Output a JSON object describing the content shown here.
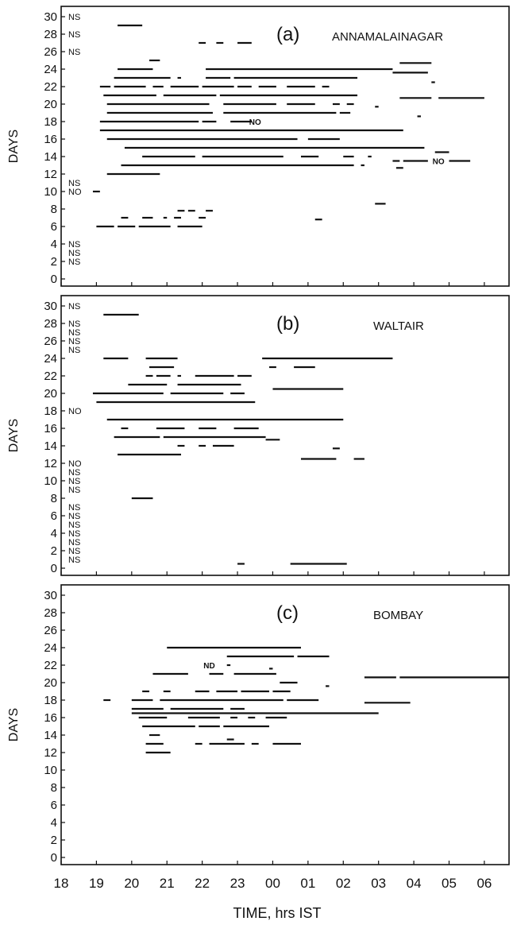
{
  "figure": {
    "xlabel": "TIME, hrs IST",
    "ylabel": "DAYS",
    "x_tick_labels": [
      "18",
      "19",
      "20",
      "21",
      "22",
      "23",
      "00",
      "01",
      "02",
      "03",
      "04",
      "05",
      "06"
    ]
  },
  "chart_data": [
    {
      "type": "gantt",
      "panel_label": "(a)",
      "station": "ANNAMALAINAGAR",
      "xlim": [
        18.0,
        30.7
      ],
      "ylim": [
        0,
        31
      ],
      "yticks": [
        0,
        2,
        4,
        6,
        8,
        10,
        12,
        14,
        16,
        18,
        20,
        22,
        24,
        26,
        28,
        30
      ],
      "ylabel": "DAYS",
      "markers": [
        {
          "day": 30,
          "text": "NS"
        },
        {
          "day": 28,
          "text": "NS"
        },
        {
          "day": 26,
          "text": "NS"
        },
        {
          "day": 11,
          "text": "NS"
        },
        {
          "day": 10,
          "text": "NO"
        },
        {
          "day": 4,
          "text": "NS"
        },
        {
          "day": 3,
          "text": "NS"
        },
        {
          "day": 2,
          "text": "NS"
        }
      ],
      "inline_labels": [
        {
          "day": 18,
          "time": 23.5,
          "text": "NO"
        },
        {
          "day": 13.5,
          "time": 28.7,
          "text": "NO"
        }
      ],
      "segments": [
        {
          "day": 29,
          "start": 19.6,
          "end": 20.3
        },
        {
          "day": 27,
          "start": 21.9,
          "end": 22.1
        },
        {
          "day": 27,
          "start": 22.4,
          "end": 22.6
        },
        {
          "day": 27,
          "start": 23.0,
          "end": 23.4
        },
        {
          "day": 25,
          "start": 20.5,
          "end": 20.8
        },
        {
          "day": 24.7,
          "start": 27.6,
          "end": 28.5
        },
        {
          "day": 24,
          "start": 19.6,
          "end": 20.6
        },
        {
          "day": 24,
          "start": 22.1,
          "end": 27.4
        },
        {
          "day": 23.6,
          "start": 27.4,
          "end": 28.4
        },
        {
          "day": 23,
          "start": 19.5,
          "end": 21.1
        },
        {
          "day": 23,
          "start": 21.3,
          "end": 21.4
        },
        {
          "day": 23,
          "start": 22.1,
          "end": 22.8
        },
        {
          "day": 23,
          "start": 22.9,
          "end": 26.4
        },
        {
          "day": 22.5,
          "start": 28.5,
          "end": 28.6
        },
        {
          "day": 22,
          "start": 19.1,
          "end": 19.4
        },
        {
          "day": 22,
          "start": 19.5,
          "end": 20.4
        },
        {
          "day": 22,
          "start": 20.6,
          "end": 20.9
        },
        {
          "day": 22,
          "start": 21.1,
          "end": 21.9
        },
        {
          "day": 22,
          "start": 22.0,
          "end": 22.9
        },
        {
          "day": 22,
          "start": 23.0,
          "end": 23.4
        },
        {
          "day": 22,
          "start": 23.6,
          "end": 24.1
        },
        {
          "day": 22,
          "start": 24.4,
          "end": 25.2
        },
        {
          "day": 22,
          "start": 25.4,
          "end": 25.6
        },
        {
          "day": 21,
          "start": 19.2,
          "end": 20.7
        },
        {
          "day": 21,
          "start": 20.9,
          "end": 22.4
        },
        {
          "day": 21,
          "start": 22.5,
          "end": 26.4
        },
        {
          "day": 20.7,
          "start": 27.6,
          "end": 28.5
        },
        {
          "day": 20.7,
          "start": 28.7,
          "end": 30.0
        },
        {
          "day": 20,
          "start": 19.3,
          "end": 22.2
        },
        {
          "day": 20,
          "start": 22.6,
          "end": 24.1
        },
        {
          "day": 20,
          "start": 24.4,
          "end": 25.2
        },
        {
          "day": 20,
          "start": 25.7,
          "end": 25.9
        },
        {
          "day": 20,
          "start": 26.1,
          "end": 26.3
        },
        {
          "day": 19.7,
          "start": 26.9,
          "end": 27.0
        },
        {
          "day": 19,
          "start": 19.3,
          "end": 22.3
        },
        {
          "day": 19,
          "start": 22.6,
          "end": 25.8
        },
        {
          "day": 19,
          "start": 25.9,
          "end": 26.2
        },
        {
          "day": 18.6,
          "start": 28.1,
          "end": 28.2
        },
        {
          "day": 18,
          "start": 19.1,
          "end": 21.9
        },
        {
          "day": 18,
          "start": 22.0,
          "end": 22.4
        },
        {
          "day": 18,
          "start": 22.8,
          "end": 23.4
        },
        {
          "day": 17,
          "start": 19.1,
          "end": 27.7
        },
        {
          "day": 16,
          "start": 19.3,
          "end": 24.7
        },
        {
          "day": 16,
          "start": 25.0,
          "end": 25.9
        },
        {
          "day": 15,
          "start": 19.8,
          "end": 28.3
        },
        {
          "day": 14.5,
          "start": 28.6,
          "end": 29.0
        },
        {
          "day": 14,
          "start": 20.3,
          "end": 21.8
        },
        {
          "day": 14,
          "start": 22.0,
          "end": 24.3
        },
        {
          "day": 14,
          "start": 24.8,
          "end": 25.3
        },
        {
          "day": 14,
          "start": 26.0,
          "end": 26.3
        },
        {
          "day": 14,
          "start": 26.7,
          "end": 26.8
        },
        {
          "day": 13.5,
          "start": 27.4,
          "end": 27.6
        },
        {
          "day": 13.5,
          "start": 27.7,
          "end": 28.4
        },
        {
          "day": 13.5,
          "start": 29.0,
          "end": 29.6
        },
        {
          "day": 13,
          "start": 19.7,
          "end": 26.3
        },
        {
          "day": 13,
          "start": 26.5,
          "end": 26.6
        },
        {
          "day": 12.7,
          "start": 27.5,
          "end": 27.7
        },
        {
          "day": 12,
          "start": 19.3,
          "end": 20.8
        },
        {
          "day": 10,
          "start": 18.9,
          "end": 19.1
        },
        {
          "day": 8.6,
          "start": 26.9,
          "end": 27.2
        },
        {
          "day": 7.8,
          "start": 21.3,
          "end": 21.5
        },
        {
          "day": 7.8,
          "start": 21.6,
          "end": 21.8
        },
        {
          "day": 7.8,
          "start": 22.1,
          "end": 22.3
        },
        {
          "day": 7,
          "start": 19.7,
          "end": 19.9
        },
        {
          "day": 7,
          "start": 20.3,
          "end": 20.6
        },
        {
          "day": 7,
          "start": 20.9,
          "end": 21.0
        },
        {
          "day": 7,
          "start": 21.2,
          "end": 21.4
        },
        {
          "day": 7,
          "start": 21.9,
          "end": 22.1
        },
        {
          "day": 6.8,
          "start": 25.2,
          "end": 25.4
        },
        {
          "day": 6,
          "start": 19.0,
          "end": 19.5
        },
        {
          "day": 6,
          "start": 19.6,
          "end": 20.1
        },
        {
          "day": 6,
          "start": 20.2,
          "end": 21.1
        },
        {
          "day": 6,
          "start": 21.3,
          "end": 22.0
        }
      ]
    },
    {
      "type": "gantt",
      "panel_label": "(b)",
      "station": "WALTAIR",
      "xlim": [
        18.0,
        30.7
      ],
      "ylim": [
        0,
        31
      ],
      "yticks": [
        0,
        2,
        4,
        6,
        8,
        10,
        12,
        14,
        16,
        18,
        20,
        22,
        24,
        26,
        28,
        30
      ],
      "ylabel": "DAYS",
      "markers": [
        {
          "day": 30,
          "text": "NS"
        },
        {
          "day": 28,
          "text": "NS"
        },
        {
          "day": 27,
          "text": "NS"
        },
        {
          "day": 26,
          "text": "NS"
        },
        {
          "day": 25,
          "text": "NS"
        },
        {
          "day": 18,
          "text": "NO"
        },
        {
          "day": 12,
          "text": "NO"
        },
        {
          "day": 11,
          "text": "NS"
        },
        {
          "day": 10,
          "text": "NS"
        },
        {
          "day": 9,
          "text": "NS"
        },
        {
          "day": 7,
          "text": "NS"
        },
        {
          "day": 6,
          "text": "NS"
        },
        {
          "day": 5,
          "text": "NS"
        },
        {
          "day": 4,
          "text": "NS"
        },
        {
          "day": 3,
          "text": "NS"
        },
        {
          "day": 2,
          "text": "NS"
        },
        {
          "day": 1,
          "text": "NS"
        }
      ],
      "inline_labels": [],
      "segments": [
        {
          "day": 29,
          "start": 19.2,
          "end": 20.2
        },
        {
          "day": 24,
          "start": 19.2,
          "end": 19.9
        },
        {
          "day": 24,
          "start": 20.4,
          "end": 21.3
        },
        {
          "day": 24,
          "start": 23.7,
          "end": 27.4
        },
        {
          "day": 23,
          "start": 20.5,
          "end": 21.2
        },
        {
          "day": 23,
          "start": 23.9,
          "end": 24.1
        },
        {
          "day": 23,
          "start": 24.6,
          "end": 25.2
        },
        {
          "day": 22,
          "start": 20.4,
          "end": 20.6
        },
        {
          "day": 22,
          "start": 20.7,
          "end": 21.1
        },
        {
          "day": 22,
          "start": 21.3,
          "end": 21.4
        },
        {
          "day": 22,
          "start": 21.8,
          "end": 22.9
        },
        {
          "day": 22,
          "start": 23.0,
          "end": 23.4
        },
        {
          "day": 21,
          "start": 19.9,
          "end": 21.0
        },
        {
          "day": 21,
          "start": 21.3,
          "end": 23.1
        },
        {
          "day": 20.5,
          "start": 24.0,
          "end": 26.0
        },
        {
          "day": 20,
          "start": 18.9,
          "end": 20.9
        },
        {
          "day": 20,
          "start": 21.1,
          "end": 22.6
        },
        {
          "day": 20,
          "start": 22.8,
          "end": 23.2
        },
        {
          "day": 19,
          "start": 19.0,
          "end": 23.5
        },
        {
          "day": 17,
          "start": 19.3,
          "end": 26.0
        },
        {
          "day": 16,
          "start": 19.7,
          "end": 19.9
        },
        {
          "day": 16,
          "start": 20.7,
          "end": 21.5
        },
        {
          "day": 16,
          "start": 21.9,
          "end": 22.4
        },
        {
          "day": 16,
          "start": 22.9,
          "end": 23.6
        },
        {
          "day": 15,
          "start": 19.5,
          "end": 20.8
        },
        {
          "day": 15,
          "start": 20.9,
          "end": 23.8
        },
        {
          "day": 14.7,
          "start": 23.8,
          "end": 24.2
        },
        {
          "day": 14,
          "start": 21.3,
          "end": 21.5
        },
        {
          "day": 14,
          "start": 21.9,
          "end": 22.1
        },
        {
          "day": 14,
          "start": 22.3,
          "end": 22.9
        },
        {
          "day": 13.7,
          "start": 25.7,
          "end": 25.9
        },
        {
          "day": 13,
          "start": 19.6,
          "end": 21.4
        },
        {
          "day": 12.5,
          "start": 24.8,
          "end": 25.8
        },
        {
          "day": 12.5,
          "start": 26.3,
          "end": 26.6
        },
        {
          "day": 8,
          "start": 20.0,
          "end": 20.6
        },
        {
          "day": 0.5,
          "start": 23.0,
          "end": 23.2
        },
        {
          "day": 0.5,
          "start": 24.5,
          "end": 26.1
        }
      ]
    },
    {
      "type": "gantt",
      "panel_label": "(c)",
      "station": "BOMBAY",
      "xlim": [
        18.0,
        30.7
      ],
      "ylim": [
        0,
        31
      ],
      "yticks": [
        0,
        2,
        4,
        6,
        8,
        10,
        12,
        14,
        16,
        18,
        20,
        22,
        24,
        26,
        28,
        30
      ],
      "ylabel": "DAYS",
      "markers": [],
      "inline_labels": [
        {
          "day": 22,
          "time": 22.2,
          "text": "ND"
        }
      ],
      "segments": [
        {
          "day": 24,
          "start": 21.0,
          "end": 24.8
        },
        {
          "day": 23,
          "start": 22.7,
          "end": 24.6
        },
        {
          "day": 23,
          "start": 24.7,
          "end": 25.6
        },
        {
          "day": 22,
          "start": 22.7,
          "end": 22.8
        },
        {
          "day": 21.6,
          "start": 23.9,
          "end": 24.0
        },
        {
          "day": 21,
          "start": 20.6,
          "end": 21.6
        },
        {
          "day": 21,
          "start": 22.2,
          "end": 22.6
        },
        {
          "day": 21,
          "start": 22.9,
          "end": 24.1
        },
        {
          "day": 20.6,
          "start": 26.6,
          "end": 27.5
        },
        {
          "day": 20.6,
          "start": 27.6,
          "end": 30.7
        },
        {
          "day": 20,
          "start": 24.2,
          "end": 24.7
        },
        {
          "day": 19.6,
          "start": 25.5,
          "end": 25.6
        },
        {
          "day": 19,
          "start": 20.3,
          "end": 20.5
        },
        {
          "day": 19,
          "start": 20.9,
          "end": 21.1
        },
        {
          "day": 19,
          "start": 21.8,
          "end": 22.2
        },
        {
          "day": 19,
          "start": 22.4,
          "end": 23.0
        },
        {
          "day": 19,
          "start": 23.1,
          "end": 23.9
        },
        {
          "day": 19,
          "start": 24.0,
          "end": 24.5
        },
        {
          "day": 18,
          "start": 19.2,
          "end": 19.4
        },
        {
          "day": 18,
          "start": 20.0,
          "end": 20.6
        },
        {
          "day": 18,
          "start": 20.8,
          "end": 24.3
        },
        {
          "day": 18,
          "start": 24.4,
          "end": 25.3
        },
        {
          "day": 17.7,
          "start": 26.6,
          "end": 27.9
        },
        {
          "day": 17,
          "start": 20.0,
          "end": 20.9
        },
        {
          "day": 17,
          "start": 21.1,
          "end": 22.6
        },
        {
          "day": 17,
          "start": 22.8,
          "end": 23.2
        },
        {
          "day": 16.5,
          "start": 20.0,
          "end": 27.0
        },
        {
          "day": 16,
          "start": 20.2,
          "end": 21.0
        },
        {
          "day": 16,
          "start": 21.6,
          "end": 22.5
        },
        {
          "day": 16,
          "start": 22.8,
          "end": 23.0
        },
        {
          "day": 16,
          "start": 23.3,
          "end": 23.5
        },
        {
          "day": 16,
          "start": 23.8,
          "end": 24.4
        },
        {
          "day": 15,
          "start": 20.3,
          "end": 21.8
        },
        {
          "day": 15,
          "start": 21.9,
          "end": 22.5
        },
        {
          "day": 15,
          "start": 22.6,
          "end": 23.9
        },
        {
          "day": 14,
          "start": 20.5,
          "end": 20.8
        },
        {
          "day": 13.5,
          "start": 22.7,
          "end": 22.9
        },
        {
          "day": 13,
          "start": 20.4,
          "end": 20.9
        },
        {
          "day": 13,
          "start": 21.8,
          "end": 22.0
        },
        {
          "day": 13,
          "start": 22.2,
          "end": 23.2
        },
        {
          "day": 13,
          "start": 23.4,
          "end": 23.6
        },
        {
          "day": 13,
          "start": 24.0,
          "end": 24.8
        },
        {
          "day": 12,
          "start": 20.4,
          "end": 21.1
        }
      ]
    }
  ]
}
